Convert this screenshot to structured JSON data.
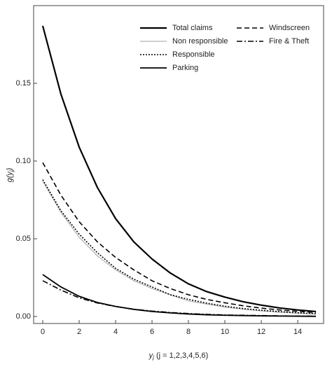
{
  "chart_data": {
    "type": "line",
    "x_label": {
      "base": "y",
      "sub": "j",
      "rest": " (j = 1,2,3,4,5,6)"
    },
    "y_label": {
      "base": "g(y",
      "sub": "j",
      "rest": ")"
    },
    "x": [
      0,
      1,
      2,
      3,
      4,
      5,
      6,
      7,
      8,
      9,
      10,
      11,
      12,
      13,
      14,
      15
    ],
    "series": [
      {
        "name": "Total claims",
        "color": "#000000",
        "width": 2.2,
        "dash": "none",
        "values": [
          0.187,
          0.143,
          0.109,
          0.083,
          0.063,
          0.048,
          0.037,
          0.028,
          0.021,
          0.016,
          0.0125,
          0.0095,
          0.0073,
          0.0055,
          0.0042,
          0.0032
        ]
      },
      {
        "name": "Non responsible",
        "color": "#b0b0b0",
        "width": 1.2,
        "dash": "none",
        "values": [
          0.087,
          0.067,
          0.051,
          0.039,
          0.03,
          0.023,
          0.018,
          0.014,
          0.01,
          0.008,
          0.006,
          0.0047,
          0.0036,
          0.0028,
          0.0021,
          0.0016
        ]
      },
      {
        "name": "Responsible",
        "color": "#000000",
        "width": 1.6,
        "dash": "2,2",
        "values": [
          0.088,
          0.068,
          0.053,
          0.041,
          0.031,
          0.024,
          0.019,
          0.014,
          0.011,
          0.0086,
          0.0066,
          0.0051,
          0.004,
          0.0031,
          0.0024,
          0.0018
        ]
      },
      {
        "name": "Parking",
        "color": "#000000",
        "width": 1.8,
        "dash": "none",
        "values": [
          0.027,
          0.019,
          0.013,
          0.009,
          0.0065,
          0.0046,
          0.0032,
          0.0023,
          0.0016,
          0.0011,
          0.0008,
          0.0006,
          0.0004,
          0.0003,
          0.0002,
          0.0001
        ]
      },
      {
        "name": "Windscreen",
        "color": "#000000",
        "width": 1.6,
        "dash": "7,4",
        "values": [
          0.099,
          0.078,
          0.061,
          0.048,
          0.038,
          0.03,
          0.023,
          0.018,
          0.014,
          0.011,
          0.0088,
          0.0069,
          0.0054,
          0.0042,
          0.0033,
          0.0026
        ]
      },
      {
        "name": "Fire & Theft",
        "color": "#000000",
        "width": 1.6,
        "dash": "8,3,2,3",
        "values": [
          0.023,
          0.017,
          0.012,
          0.0087,
          0.0064,
          0.0047,
          0.0035,
          0.0026,
          0.0019,
          0.0014,
          0.001,
          0.0008,
          0.0006,
          0.0004,
          0.0003,
          0.0002
        ]
      }
    ],
    "xlim": [
      -0.5,
      15.42
    ],
    "ylim": [
      -0.0045,
      0.2
    ],
    "xticks": [
      0,
      2,
      4,
      6,
      8,
      10,
      12,
      14
    ],
    "yticks": [
      {
        "value": 0,
        "label": "0.00"
      },
      0.05,
      {
        "value": 0.1,
        "label": "0.10"
      },
      0.15
    ],
    "grid": false
  }
}
